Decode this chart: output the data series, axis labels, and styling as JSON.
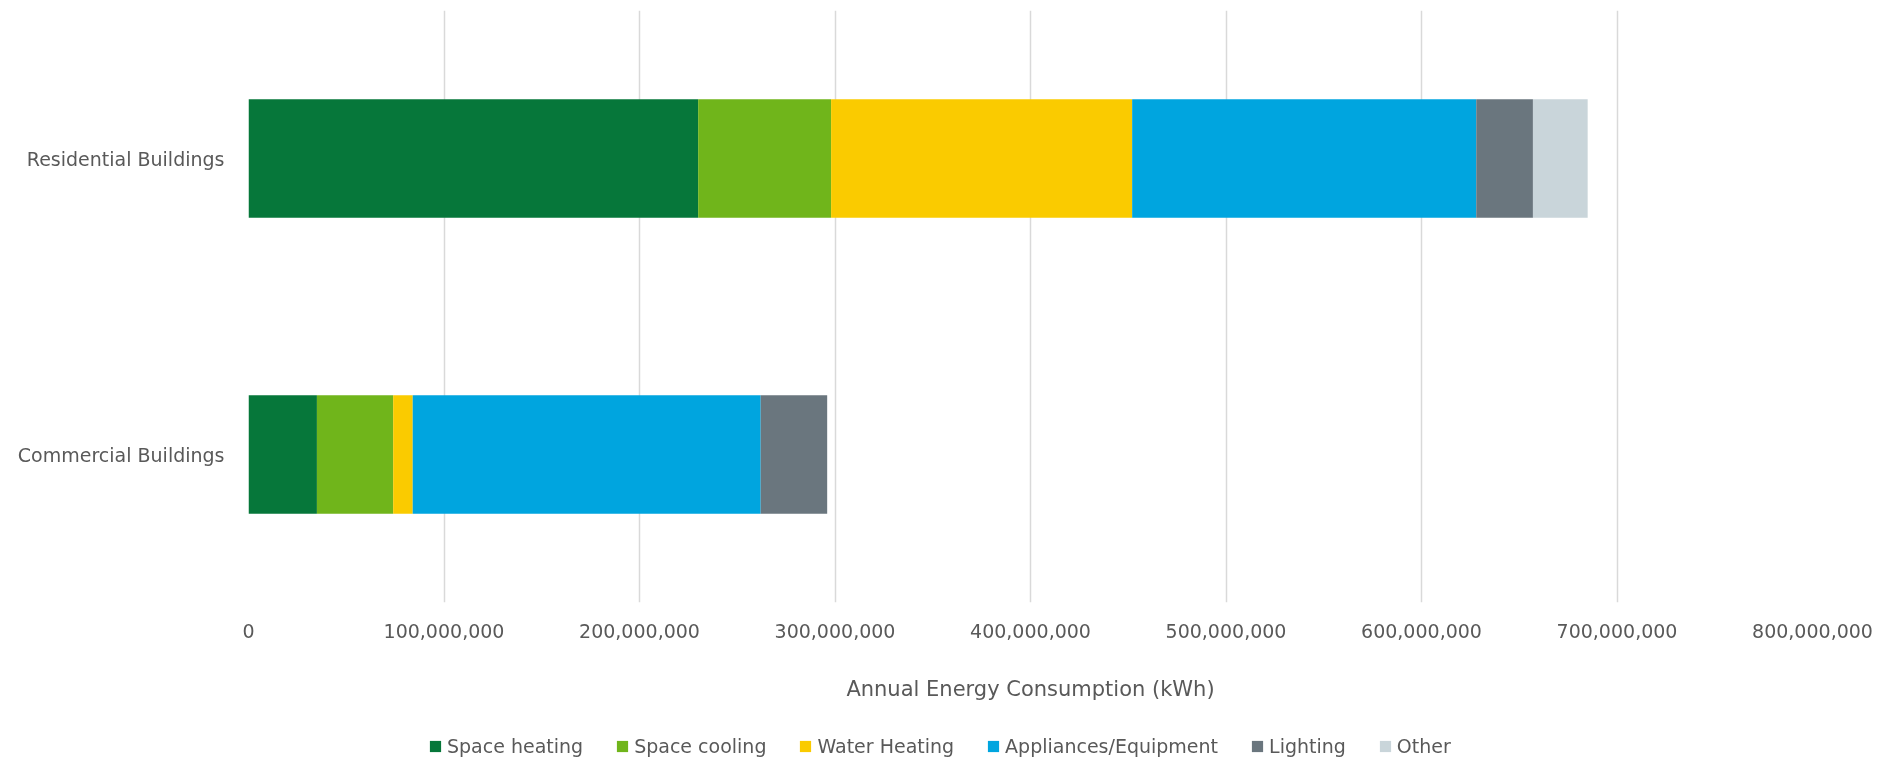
{
  "chart_data": {
    "type": "bar",
    "orientation": "horizontal",
    "stacked": true,
    "categories": [
      "Residential Buildings",
      "Commercial Buildings"
    ],
    "series": [
      {
        "name": "Space heating",
        "color": "#06773a",
        "values": [
          230000000,
          35000000
        ]
      },
      {
        "name": "Space cooling",
        "color": "#70b51b",
        "values": [
          68000000,
          39000000
        ]
      },
      {
        "name": "Water Heating",
        "color": "#facb00",
        "values": [
          154000000,
          10000000
        ]
      },
      {
        "name": "Appliances/Equipment",
        "color": "#00a5df",
        "values": [
          176000000,
          178000000
        ]
      },
      {
        "name": "Lighting",
        "color": "#6a767e",
        "values": [
          29000000,
          34000000
        ]
      },
      {
        "name": "Other",
        "color": "#c9d5da",
        "values": [
          28000000,
          null
        ]
      }
    ],
    "xlabel": "Annual Energy Consumption (kWh)",
    "xlim": [
      0,
      800000000
    ],
    "xticks": [
      0,
      {
        "value": 100000000,
        "label": "100,000,000"
      },
      {
        "value": 200000000,
        "label": "200,000,000"
      },
      {
        "value": 300000000,
        "label": "300,000,000"
      },
      {
        "value": 400000000,
        "label": "400,000,000"
      },
      {
        "value": 500000000,
        "label": "500,000,000"
      },
      {
        "value": 600000000,
        "label": "600,000,000"
      },
      {
        "value": 700000000,
        "label": "700,000,000"
      },
      {
        "value": 800000000,
        "label": "800,000,000"
      }
    ],
    "grid": "x",
    "legend": "bottom"
  }
}
